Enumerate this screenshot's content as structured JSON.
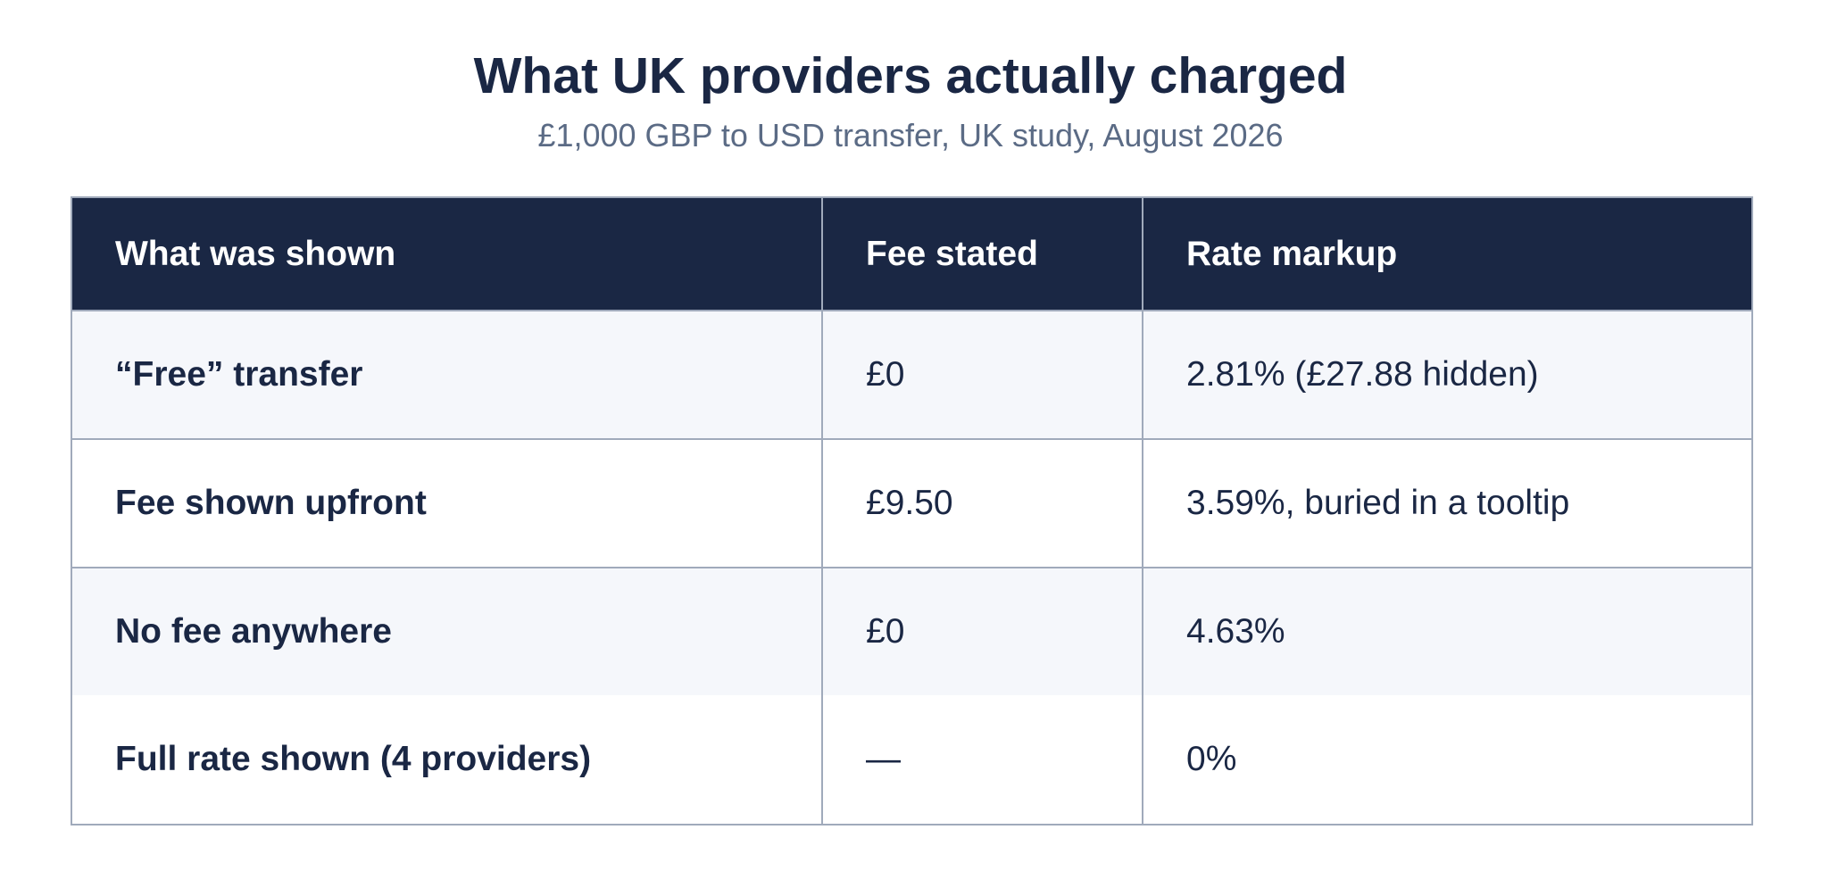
{
  "header": {
    "title": "What UK providers actually charged",
    "subtitle": "£1,000 GBP to USD transfer, UK study, August 2026"
  },
  "table": {
    "columns": [
      "What was shown",
      "Fee stated",
      "Rate markup"
    ],
    "rows": [
      [
        "“Free” transfer",
        "£0",
        "2.81% (£27.88 hidden)"
      ],
      [
        "Fee shown upfront",
        "£9.50",
        "3.59%, buried in a tooltip"
      ],
      [
        "No fee anywhere",
        "£0",
        "4.63%"
      ],
      [
        "Full rate shown (4 providers)",
        "—",
        "0%"
      ]
    ]
  }
}
